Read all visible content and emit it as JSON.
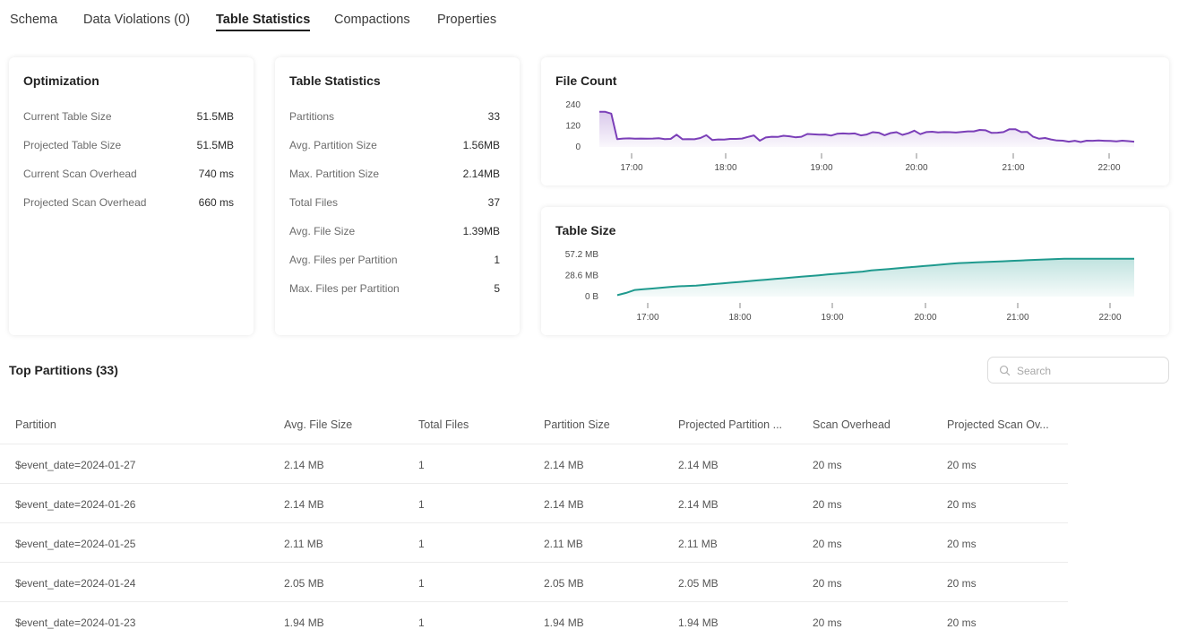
{
  "tabs": [
    {
      "label": "Schema",
      "active": false
    },
    {
      "label": "Data Violations (0)",
      "active": false
    },
    {
      "label": "Table Statistics",
      "active": true
    },
    {
      "label": "Compactions",
      "active": false
    },
    {
      "label": "Properties",
      "active": false
    }
  ],
  "optimization": {
    "title": "Optimization",
    "rows": [
      {
        "label": "Current Table Size",
        "value": "51.5MB"
      },
      {
        "label": "Projected Table Size",
        "value": "51.5MB"
      },
      {
        "label": "Current Scan Overhead",
        "value": "740 ms"
      },
      {
        "label": "Projected Scan Overhead",
        "value": "660 ms"
      }
    ]
  },
  "table_statistics": {
    "title": "Table Statistics",
    "rows": [
      {
        "label": "Partitions",
        "value": "33"
      },
      {
        "label": "Avg. Partition Size",
        "value": "1.56MB"
      },
      {
        "label": "Max. Partition Size",
        "value": "2.14MB"
      },
      {
        "label": "Total Files",
        "value": "37"
      },
      {
        "label": "Avg. File Size",
        "value": "1.39MB"
      },
      {
        "label": "Avg. Files per Partition",
        "value": "1"
      },
      {
        "label": "Max. Files per Partition",
        "value": "5"
      }
    ]
  },
  "chart_data": [
    {
      "type": "area",
      "title": "File Count",
      "color": "#7b3fb8",
      "x_ticks": [
        "17:00",
        "18:00",
        "19:00",
        "20:00",
        "21:00",
        "22:00"
      ],
      "y_ticks": [
        "240",
        "120",
        "0"
      ],
      "ylim": [
        0,
        240
      ],
      "values": [
        200,
        200,
        190,
        45,
        48,
        49,
        47,
        48,
        47,
        48,
        50,
        45,
        46,
        70,
        44,
        45,
        44,
        51,
        67,
        40,
        43,
        42,
        46,
        46,
        48,
        57,
        66,
        36,
        54,
        58,
        57,
        64,
        61,
        55,
        58,
        74,
        72,
        70,
        71,
        65,
        75,
        77,
        75,
        77,
        66,
        71,
        84,
        81,
        67,
        79,
        84,
        69,
        78,
        93,
        73,
        85,
        87,
        83,
        85,
        84,
        82,
        86,
        89,
        89,
        97,
        95,
        80,
        81,
        85,
        101,
        101,
        85,
        86,
        58,
        47,
        51,
        43,
        37,
        36,
        30,
        35,
        28,
        36,
        35,
        37,
        35,
        34,
        32,
        36,
        33,
        30
      ]
    },
    {
      "type": "area",
      "title": "Table Size",
      "color": "#1f9a8e",
      "x_ticks": [
        "17:00",
        "18:00",
        "19:00",
        "20:00",
        "21:00",
        "22:00"
      ],
      "y_ticks": [
        "57.2 MB",
        "28.6 MB",
        "0 B"
      ],
      "ylim": [
        0,
        57.2
      ],
      "values": [
        2,
        5,
        9,
        10,
        11,
        12,
        13,
        14,
        14.5,
        15,
        16,
        17,
        18,
        19,
        20,
        21,
        22,
        23,
        24,
        25,
        26,
        27,
        28,
        29,
        30,
        31,
        32,
        33,
        34,
        35.5,
        36.5,
        37.5,
        38.5,
        39.5,
        40.5,
        41.5,
        42.5,
        43.5,
        44.5,
        45.5,
        46,
        46.5,
        47,
        47.5,
        48,
        48.5,
        49,
        49.5,
        50,
        50.5,
        51,
        51.3,
        51.5,
        51.5,
        51.5,
        51.5,
        51.5,
        51.5,
        51.5,
        51.5
      ]
    }
  ],
  "top_partitions": {
    "title": "Top Partitions (33)",
    "search_placeholder": "Search",
    "columns": [
      "Partition",
      "Avg. File Size",
      "Total Files",
      "Partition Size",
      "Projected Partition ...",
      "Scan Overhead",
      "Projected Scan Ov..."
    ],
    "rows": [
      [
        "$event_date=2024-01-27",
        "2.14 MB",
        "1",
        "2.14 MB",
        "2.14 MB",
        "20 ms",
        "20 ms"
      ],
      [
        "$event_date=2024-01-26",
        "2.14 MB",
        "1",
        "2.14 MB",
        "2.14 MB",
        "20 ms",
        "20 ms"
      ],
      [
        "$event_date=2024-01-25",
        "2.11 MB",
        "1",
        "2.11 MB",
        "2.11 MB",
        "20 ms",
        "20 ms"
      ],
      [
        "$event_date=2024-01-24",
        "2.05 MB",
        "1",
        "2.05 MB",
        "2.05 MB",
        "20 ms",
        "20 ms"
      ],
      [
        "$event_date=2024-01-23",
        "1.94 MB",
        "1",
        "1.94 MB",
        "1.94 MB",
        "20 ms",
        "20 ms"
      ]
    ]
  }
}
